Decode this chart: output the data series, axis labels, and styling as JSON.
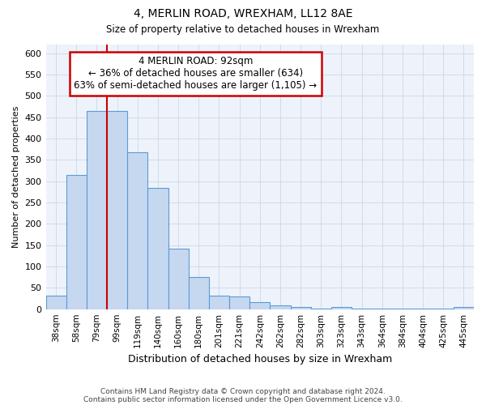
{
  "title": "4, MERLIN ROAD, WREXHAM, LL12 8AE",
  "subtitle": "Size of property relative to detached houses in Wrexham",
  "xlabel": "Distribution of detached houses by size in Wrexham",
  "ylabel": "Number of detached properties",
  "categories": [
    "38sqm",
    "58sqm",
    "79sqm",
    "99sqm",
    "119sqm",
    "140sqm",
    "160sqm",
    "180sqm",
    "201sqm",
    "221sqm",
    "242sqm",
    "262sqm",
    "282sqm",
    "303sqm",
    "323sqm",
    "343sqm",
    "364sqm",
    "384sqm",
    "404sqm",
    "425sqm",
    "445sqm"
  ],
  "bar_values": [
    31,
    315,
    465,
    465,
    367,
    284,
    142,
    76,
    31,
    29,
    16,
    8,
    5,
    2,
    5,
    1,
    1,
    1,
    1,
    1,
    6
  ],
  "bar_color": "#c5d8f0",
  "bar_edge_color": "#5b9bd5",
  "red_line_index": 3,
  "annotation_text": "4 MERLIN ROAD: 92sqm\n← 36% of detached houses are smaller (634)\n63% of semi-detached houses are larger (1,105) →",
  "annotation_box_color": "#ffffff",
  "annotation_box_edge": "#cc0000",
  "ylim": [
    0,
    620
  ],
  "yticks": [
    0,
    50,
    100,
    150,
    200,
    250,
    300,
    350,
    400,
    450,
    500,
    550,
    600
  ],
  "footer1": "Contains HM Land Registry data © Crown copyright and database right 2024.",
  "footer2": "Contains public sector information licensed under the Open Government Licence v3.0.",
  "bg_color": "#ffffff",
  "plot_bg_color": "#eef3fb",
  "grid_color": "#d0dce8"
}
